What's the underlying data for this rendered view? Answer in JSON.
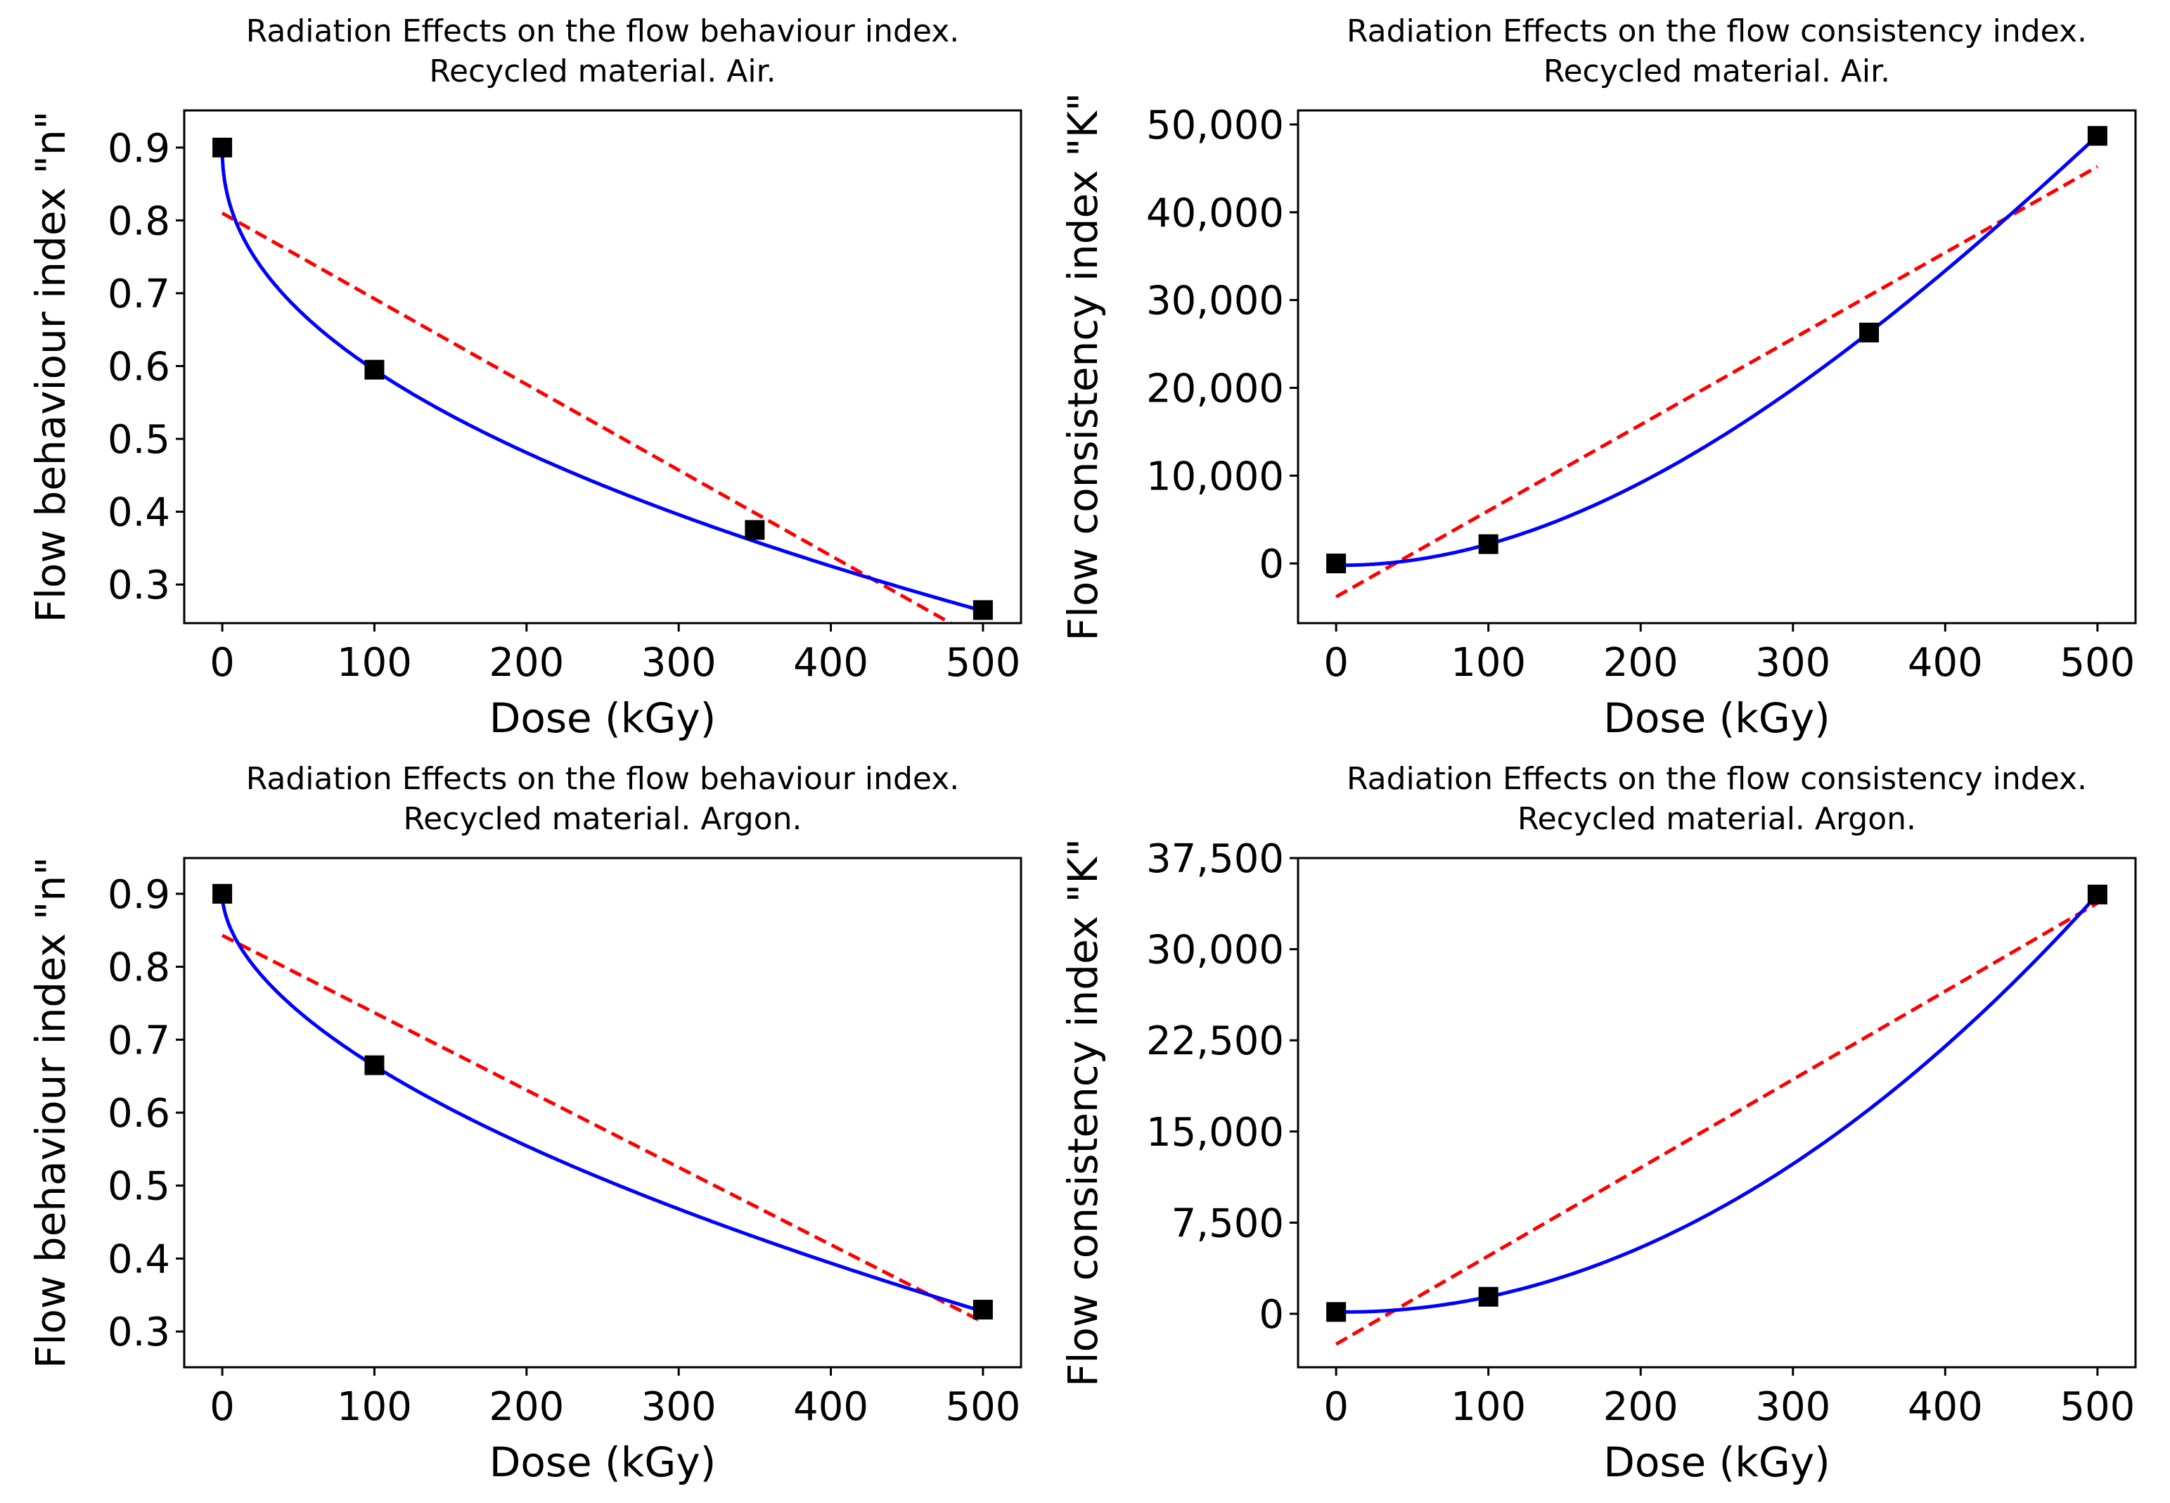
{
  "chart_data": [
    {
      "type": "scatter",
      "title": [
        "Radiation Effects on the flow behaviour index.",
        "Recycled material. Air."
      ],
      "xlabel": "Dose (kGy)",
      "ylabel": "Flow behaviour index \"n\"",
      "xlim": [
        -25,
        525
      ],
      "ylim": [
        0.247,
        0.951
      ],
      "xticks": [
        0,
        100,
        200,
        300,
        400,
        500
      ],
      "xtick_labels": [
        "0",
        "100",
        "200",
        "300",
        "400",
        "500"
      ],
      "yticks": [
        0.3,
        0.4,
        0.5,
        0.6,
        0.7,
        0.8,
        0.9
      ],
      "ytick_labels": [
        "0.3",
        "0.4",
        "0.5",
        "0.6",
        "0.7",
        "0.8",
        "0.9"
      ],
      "grid": false,
      "points": {
        "x": [
          0,
          100,
          350,
          500
        ],
        "y": [
          0.9,
          0.595,
          0.375,
          0.265
        ],
        "color": "#000000"
      },
      "curve_fit": {
        "type": "power_decay",
        "a": 0.9,
        "k": 0.0374,
        "p": 0.456,
        "color": "#0000ff"
      },
      "linear_fit": {
        "intercept": 0.81,
        "slope": -0.001176,
        "color": "#ff0000"
      }
    },
    {
      "type": "scatter",
      "title": [
        "Radiation Effects on the flow consistency index.",
        "Recycled material. Air."
      ],
      "xlabel": "Dose (kGy)",
      "ylabel": "Flow consistency index \"K\"",
      "xlim": [
        -25,
        525
      ],
      "ylim": [
        -6800,
        51600
      ],
      "xticks": [
        0,
        100,
        200,
        300,
        400,
        500
      ],
      "xtick_labels": [
        "0",
        "100",
        "200",
        "300",
        "400",
        "500"
      ],
      "yticks": [
        0,
        10000,
        20000,
        30000,
        40000,
        50000
      ],
      "ytick_labels": [
        "0",
        "10,000",
        "20,000",
        "30,000",
        "40,000",
        "50,000"
      ],
      "grid": false,
      "points": {
        "x": [
          0,
          100,
          350,
          500
        ],
        "y": [
          0,
          2200,
          26300,
          48700
        ],
        "color": "#000000"
      },
      "curve_fit": {
        "type": "polynomial",
        "coefficients": [
          -200,
          -1.906,
          0.27396,
          -0.000149
        ],
        "color": "#0000ff"
      },
      "linear_fit": {
        "intercept": -3800,
        "slope": 98,
        "color": "#ff0000"
      }
    },
    {
      "type": "scatter",
      "title": [
        "Radiation Effects on the flow behaviour index.",
        "Recycled material. Argon."
      ],
      "xlabel": "Dose (kGy)",
      "ylabel": "Flow behaviour index \"n\"",
      "xlim": [
        -25,
        525
      ],
      "ylim": [
        0.251,
        0.949
      ],
      "xticks": [
        0,
        100,
        200,
        300,
        400,
        500
      ],
      "xtick_labels": [
        "0",
        "100",
        "200",
        "300",
        "400",
        "500"
      ],
      "yticks": [
        0.3,
        0.4,
        0.5,
        0.6,
        0.7,
        0.8,
        0.9
      ],
      "ytick_labels": [
        "0.3",
        "0.4",
        "0.5",
        "0.6",
        "0.7",
        "0.8",
        "0.9"
      ],
      "grid": false,
      "points": {
        "x": [
          0,
          100,
          500
        ],
        "y": [
          0.9,
          0.665,
          0.33
        ],
        "color": "#000000"
      },
      "curve_fit": {
        "type": "power_decay",
        "a": 0.9,
        "k": 0.01865,
        "p": 0.551,
        "color": "#0000ff"
      },
      "linear_fit": {
        "intercept": 0.843,
        "slope": -0.00106,
        "color": "#ff0000"
      }
    },
    {
      "type": "scatter",
      "title": [
        "Radiation Effects on the flow consistency index.",
        "Recycled material. Argon."
      ],
      "xlabel": "Dose (kGy)",
      "ylabel": "Flow consistency index \"K\"",
      "xlim": [
        -25,
        525
      ],
      "ylim": [
        -4400,
        37500
      ],
      "xticks": [
        0,
        100,
        200,
        300,
        400,
        500
      ],
      "xtick_labels": [
        "0",
        "100",
        "200",
        "300",
        "400",
        "500"
      ],
      "yticks": [
        0,
        7500,
        15000,
        22500,
        30000,
        37500
      ],
      "ytick_labels": [
        "0",
        "7,500",
        "15,000",
        "22,500",
        "30,000",
        "37,500"
      ],
      "grid": false,
      "points": {
        "x": [
          0,
          100,
          500
        ],
        "y": [
          150,
          1400,
          34500
        ],
        "color": "#000000"
      },
      "curve_fit": {
        "type": "polynomial",
        "coefficients": [
          150,
          -1.55,
          0.1405
        ],
        "color": "#0000ff"
      },
      "linear_fit": {
        "intercept": -2500,
        "slope": 72.6,
        "color": "#ff0000"
      }
    }
  ]
}
